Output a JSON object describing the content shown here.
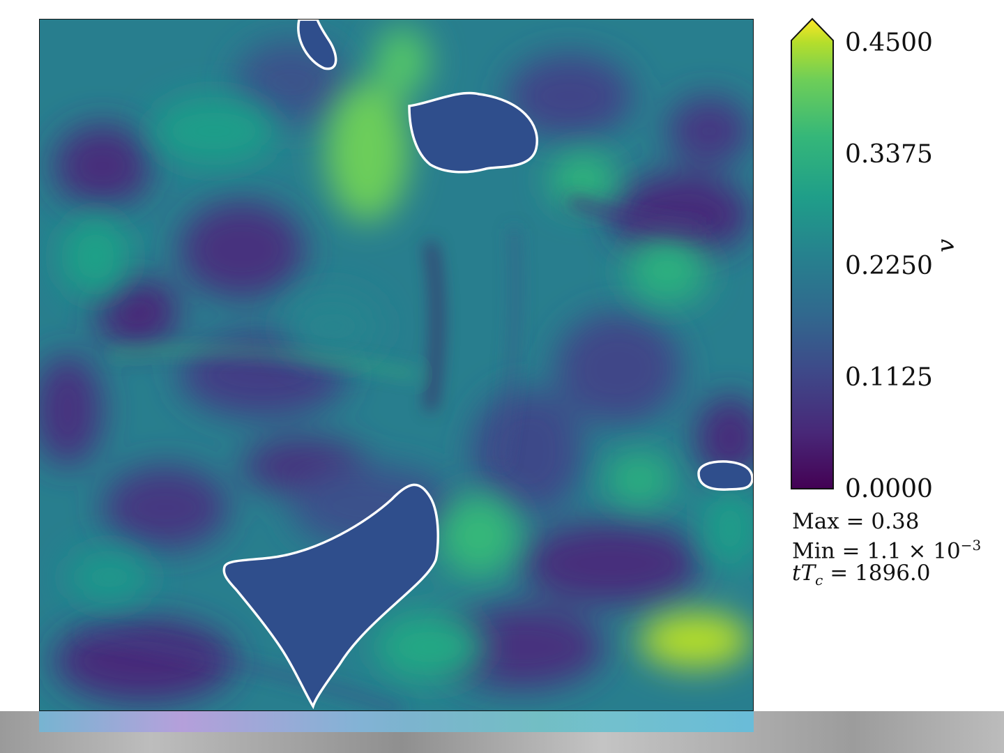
{
  "chart_data": {
    "type": "heatmap",
    "title": "",
    "xlabel": "",
    "ylabel": "",
    "colormap": "viridis",
    "colorbar": {
      "label": "v",
      "ticks": [
        "0.4500",
        "0.3375",
        "0.2250",
        "0.1125",
        "0.0000"
      ],
      "range": [
        0.0,
        0.45
      ],
      "extend": "max"
    },
    "annotations": {
      "max": "Max = 0.38",
      "min_prefix": "Min = 1.1 × 10",
      "min_exponent": "−3",
      "time": "tT = 1896.0",
      "time_var": "t",
      "time_sym": "T",
      "time_sub": "c",
      "time_value": " = 1896.0"
    },
    "contours": {
      "color": "#ffffff",
      "count": 4
    }
  },
  "colors": {
    "viridis_low": "#440154",
    "viridis_mid": "#21908d",
    "viridis_high": "#fde725"
  }
}
